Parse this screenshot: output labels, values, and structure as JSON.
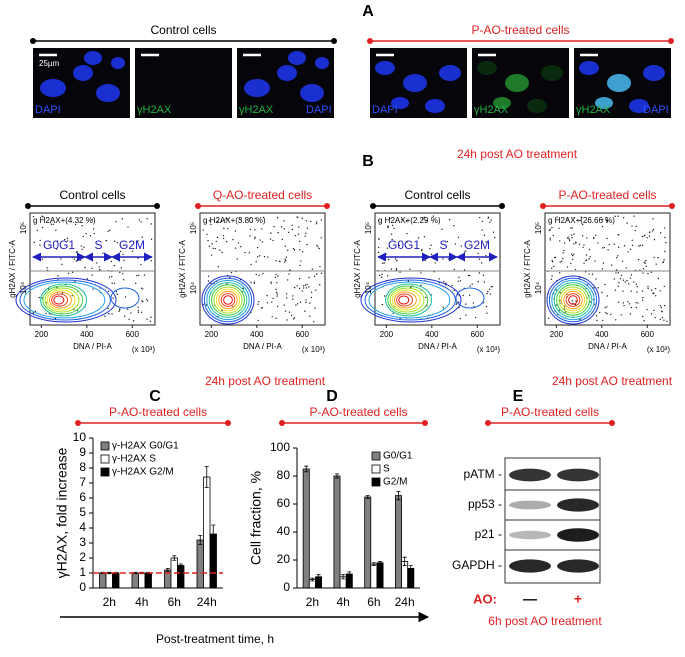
{
  "panel_letters": [
    "A",
    "B",
    "C",
    "D",
    "E"
  ],
  "panel_a": {
    "groups": [
      {
        "title": "Control cells",
        "color": "#000000",
        "images": [
          {
            "labels": [
              "DAPI"
            ],
            "colors": [
              "#3050ff"
            ]
          },
          {
            "labels": [
              "γH2AX"
            ],
            "colors": [
              "#20b040"
            ]
          },
          {
            "labels": [
              "γH2AX",
              "DAPI"
            ],
            "colors": [
              "#20b040",
              "#3050ff"
            ]
          }
        ]
      },
      {
        "title": "P-AO-treated cells",
        "color": "#e02020",
        "images": [
          {
            "labels": [
              "DAPI"
            ],
            "colors": [
              "#3050ff"
            ]
          },
          {
            "labels": [
              "γH2AX"
            ],
            "colors": [
              "#20b040"
            ]
          },
          {
            "labels": [
              "γH2AX",
              "DAPI"
            ],
            "colors": [
              "#20b040",
              "#3050ff"
            ]
          }
        ]
      }
    ],
    "scale_label": "25µm",
    "caption": "24h post AO treatment"
  },
  "panel_b": {
    "plots": [
      {
        "title": "Control cells",
        "color": "#000000",
        "gate": "g H2AX+(4.32 %)",
        "phases": [
          "G0G1",
          "S",
          "G2M"
        ]
      },
      {
        "title": "Q-AO-treated cells",
        "color": "#e02020",
        "gate": "g H2AX+(3.80 %)"
      },
      {
        "title": "Control cells",
        "color": "#000000",
        "gate": "g H2AX+(2.29 %)",
        "phases": [
          "G0G1",
          "S",
          "G2M"
        ]
      },
      {
        "title": "P-AO-treated cells",
        "color": "#e02020",
        "gate": "g H2AX+(26.66 %)"
      }
    ],
    "y_label": "gH2AX / FITC-A",
    "yticks": [
      "10⁵",
      "10⁴"
    ],
    "x_label": "DNA / PI-A",
    "x_unit": "(x 10³)",
    "xlim": [
      150,
      700
    ],
    "xticks": [
      200,
      400,
      600
    ],
    "captions": [
      "24h post AO treatment",
      "24h post AO treatment"
    ]
  },
  "chart_data": [
    {
      "type": "bar",
      "title": "P-AO-treated cells",
      "y_label": "γH2AX, fold increase",
      "categories": [
        "2h",
        "4h",
        "6h",
        "24h"
      ],
      "series": [
        {
          "name": "γ-H2AX G0/G1",
          "color": "#808080",
          "values": [
            1,
            1,
            1.2,
            3.2
          ],
          "errors": [
            0.05,
            0.05,
            0.1,
            0.3
          ]
        },
        {
          "name": "γ-H2AX  S",
          "color": "#ffffff",
          "values": [
            1,
            1,
            2,
            7.4
          ],
          "errors": [
            0.05,
            0.05,
            0.15,
            0.7
          ]
        },
        {
          "name": "γ-H2AX G2/M",
          "color": "#000000",
          "values": [
            1,
            1,
            1.5,
            3.6
          ],
          "errors": [
            0.05,
            0.05,
            0.1,
            0.6
          ]
        }
      ],
      "reference_line": 1,
      "reference_color": "#e02020",
      "ylim": [
        0,
        10
      ],
      "yticks": [
        0,
        1,
        2,
        3,
        4,
        5,
        6,
        7,
        8,
        9,
        10
      ],
      "legend": "upper left"
    },
    {
      "type": "bar",
      "title": "P-AO-treated cells",
      "y_label": "Cell fraction, %",
      "categories": [
        "2h",
        "4h",
        "6h",
        "24h"
      ],
      "series": [
        {
          "name": "G0/G1",
          "color": "#808080",
          "values": [
            85,
            80,
            65,
            66
          ],
          "errors": [
            2,
            1.5,
            1,
            3
          ]
        },
        {
          "name": "S",
          "color": "#ffffff",
          "values": [
            6,
            8,
            17,
            19
          ],
          "errors": [
            1,
            1.5,
            1,
            3
          ]
        },
        {
          "name": "G2/M",
          "color": "#000000",
          "values": [
            8,
            10,
            18,
            14
          ],
          "errors": [
            1.5,
            1.5,
            1,
            2
          ]
        }
      ],
      "ylim": [
        0,
        100
      ],
      "yticks": [
        0,
        20,
        40,
        60,
        80,
        100
      ],
      "legend": "upper right"
    }
  ],
  "x_axis_title": "Post-treatment time, h",
  "panel_e": {
    "title": "P-AO-treated cells",
    "rows": [
      "pATM -",
      "pp53 -",
      "p21 -",
      "GAPDH -"
    ],
    "treatment_label": "AO:",
    "conditions": [
      "—",
      "+"
    ],
    "condition_colors": [
      "#000000",
      "#e02020"
    ],
    "caption": "6h post AO treatment"
  }
}
